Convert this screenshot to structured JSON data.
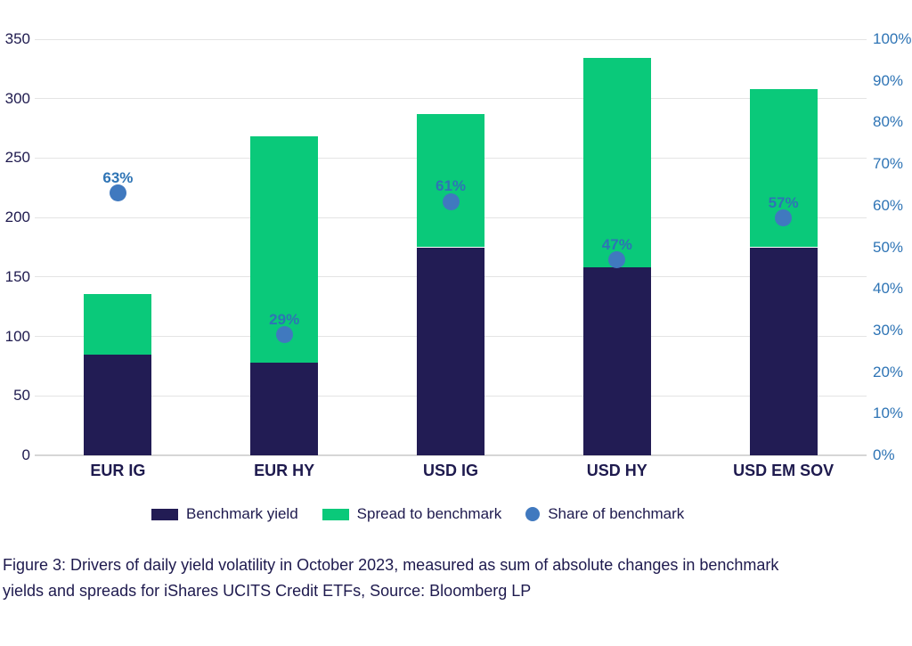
{
  "caption": {
    "lines": [
      "Figure 3: Drivers of daily yield volatility in October 2023, measured as sum of absolute changes in benchmark",
      "yields and spreads for iShares UCITS Credit ETFs, Source: Bloomberg LP"
    ]
  },
  "chart_data": {
    "type": "bar",
    "subtype": "stacked-bars-with-scatter-points",
    "categories": [
      "EUR IG",
      "EUR HY",
      "USD IG",
      "USD HY",
      "USD EM SOV"
    ],
    "series": [
      {
        "name": "Benchmark yield",
        "color": "#221c54",
        "values": [
          85,
          78,
          175,
          158,
          175
        ]
      },
      {
        "name": "Spread to benchmark",
        "color": "#0ac97a",
        "values": [
          51,
          190,
          112,
          176,
          133
        ]
      }
    ],
    "stack_totals": [
      136,
      268,
      287,
      334,
      308
    ],
    "points_series": {
      "name": "Share of benchmark",
      "color": "#4079bf",
      "label_color": "#2e74b5",
      "values_pct": [
        63,
        29,
        61,
        47,
        57
      ],
      "labels": [
        "63%",
        "29%",
        "61%",
        "47%",
        "57%"
      ]
    },
    "left_axis": {
      "tick_labels": [
        "0",
        "50",
        "100",
        "150",
        "200",
        "250",
        "300",
        "350"
      ],
      "tick_values": [
        0,
        50,
        100,
        150,
        200,
        250,
        300,
        350
      ],
      "range": [
        0,
        350
      ],
      "label_color": "#1e1a4e"
    },
    "right_axis": {
      "tick_labels": [
        "0%",
        "10%",
        "20%",
        "30%",
        "40%",
        "50%",
        "60%",
        "70%",
        "80%",
        "90%",
        "100%"
      ],
      "tick_values_pct": [
        0,
        10,
        20,
        30,
        40,
        50,
        60,
        70,
        80,
        90,
        100
      ],
      "range_pct": [
        0,
        100
      ],
      "label_color": "#2e74b5"
    },
    "grid": {
      "gridline_color": "#e4e4e4",
      "baseline_color": "#d6d6d6",
      "horizontal_gridlines": true
    },
    "legend": [
      {
        "label": "Benchmark yield",
        "swatch": "rect",
        "color": "#221c54"
      },
      {
        "label": "Spread to benchmark",
        "swatch": "rect",
        "color": "#0ac97a"
      },
      {
        "label": "Share of benchmark",
        "swatch": "circle",
        "color": "#4079bf"
      }
    ],
    "title": "",
    "xlabel": "",
    "ylabel": ""
  }
}
